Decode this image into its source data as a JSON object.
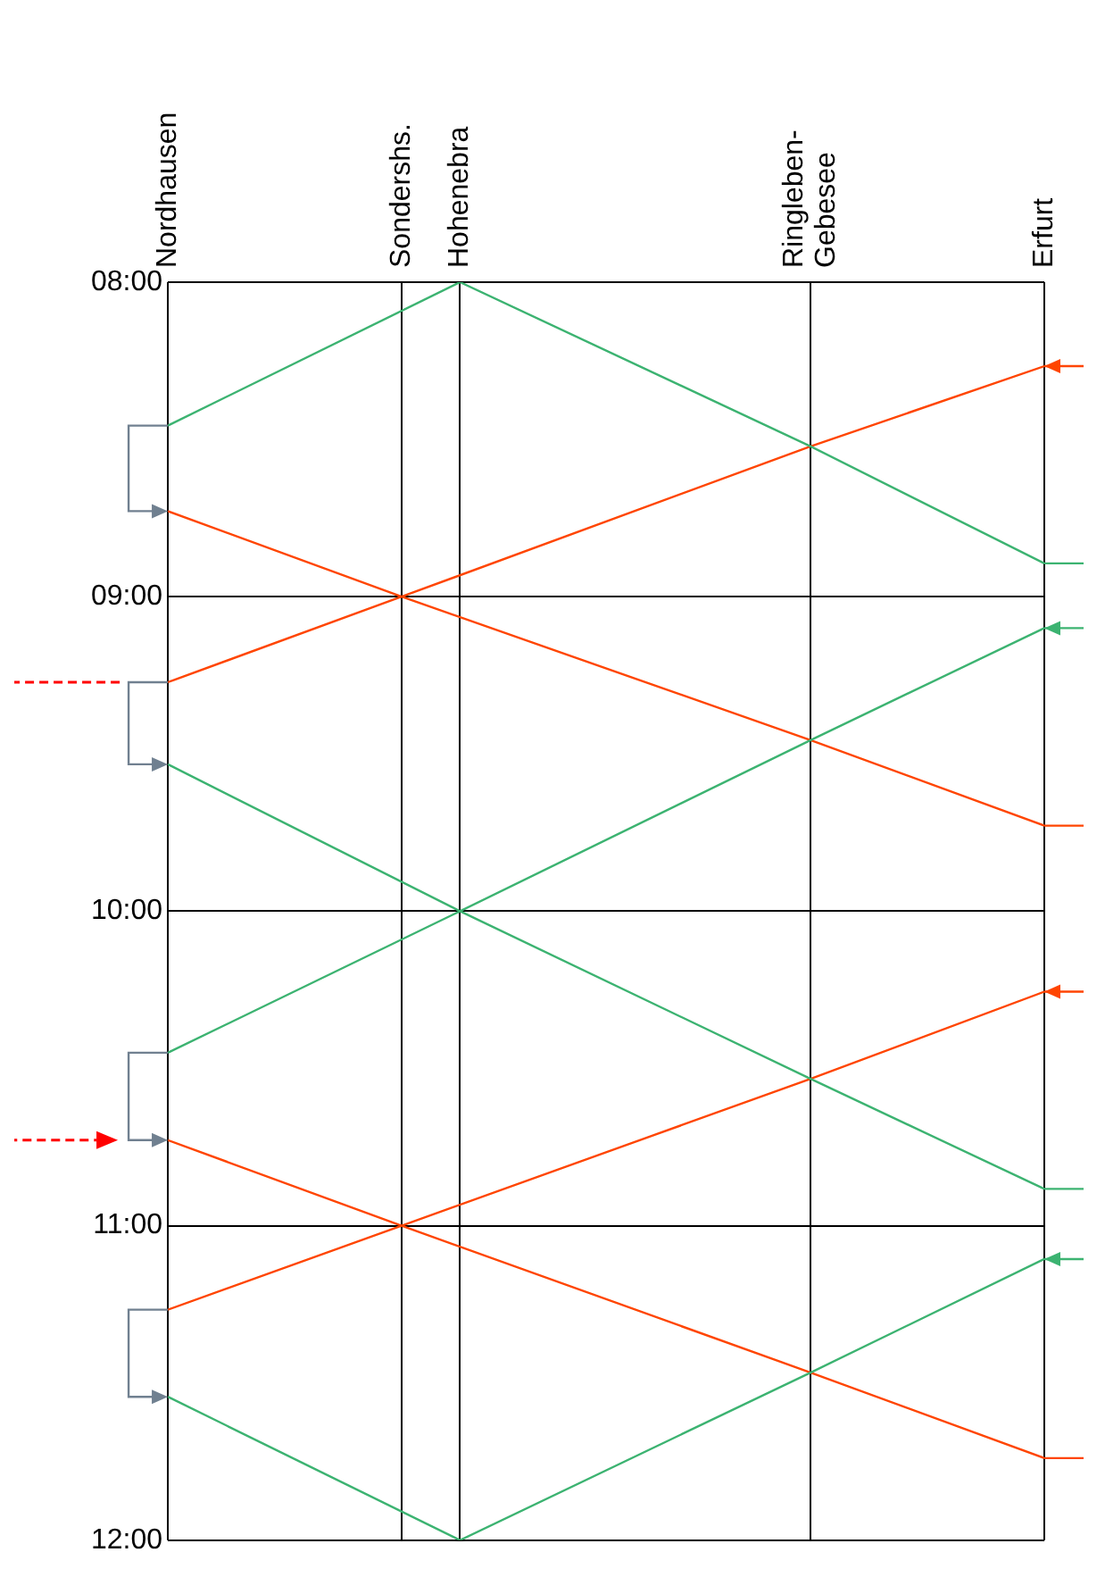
{
  "chart_data": {
    "type": "line",
    "categories": [
      "Nordhausen",
      null,
      null,
      null,
      "Sondershs.",
      "Hohenebra",
      null,
      null,
      null,
      null,
      null,
      "Ringleben-Gebesee",
      null,
      null,
      null,
      "Erfurt"
    ],
    "ylim": [
      12,
      8
    ],
    "yticks": [
      {
        "value": 8,
        "label": "08:00"
      },
      {
        "value": 9,
        "label": "09:00"
      },
      {
        "value": 10,
        "label": "10:00"
      },
      {
        "value": 11,
        "label": "11:00"
      },
      {
        "value": 12,
        "label": "12:00"
      }
    ],
    "grid": true,
    "legend": false,
    "marker": "none",
    "line_style": "solid",
    "series": [
      {
        "color": "#3cb371",
        "x": [
          "Nordhausen",
          "Hohenebra"
        ],
        "values": [
          8.456,
          8.0
        ]
      },
      {
        "color": "#3cb371",
        "x": [
          "Hohenebra",
          "Ringleben-Gebesee",
          "Erfurt"
        ],
        "values": [
          8.0,
          8.522,
          8.894
        ]
      },
      {
        "color": "#3cb371",
        "x": [
          "Erfurt",
          "Ringleben-Gebesee",
          "Hohenebra",
          "Nordhausen"
        ],
        "values": [
          9.1,
          9.456,
          10.0,
          10.45
        ]
      },
      {
        "color": "#3cb371",
        "x": [
          "Nordhausen",
          "Hohenebra",
          "Ringleben-Gebesee",
          "Erfurt"
        ],
        "values": [
          9.533,
          10.0,
          10.533,
          10.883
        ]
      },
      {
        "color": "#3cb371",
        "x": [
          "Erfurt",
          "Ringleben-Gebesee",
          "Hohenebra"
        ],
        "values": [
          11.106,
          11.467,
          12.0
        ]
      },
      {
        "color": "#3cb371",
        "x": [
          "Nordhausen",
          "Hohenebra"
        ],
        "values": [
          11.544,
          12.0
        ]
      },
      {
        "color": "#ff4500",
        "x": [
          "Erfurt",
          "Ringleben-Gebesee",
          "Sondershs.",
          "Nordhausen"
        ],
        "values": [
          8.267,
          8.522,
          9.0,
          9.272
        ]
      },
      {
        "color": "#ff4500",
        "x": [
          "Nordhausen",
          "Sondershs.",
          "Ringleben-Gebesee",
          "Erfurt"
        ],
        "values": [
          8.728,
          9.0,
          9.456,
          9.728
        ]
      },
      {
        "color": "#ff4500",
        "x": [
          "Erfurt",
          "Ringleben-Gebesee",
          "Sondershs.",
          "Nordhausen"
        ],
        "values": [
          10.256,
          10.533,
          11.0,
          11.267
        ]
      },
      {
        "color": "#ff4500",
        "x": [
          "Nordhausen",
          "Sondershs.",
          "Ringleben-Gebesee",
          "Erfurt"
        ],
        "values": [
          10.728,
          11.0,
          11.467,
          11.739
        ]
      }
    ]
  }
}
